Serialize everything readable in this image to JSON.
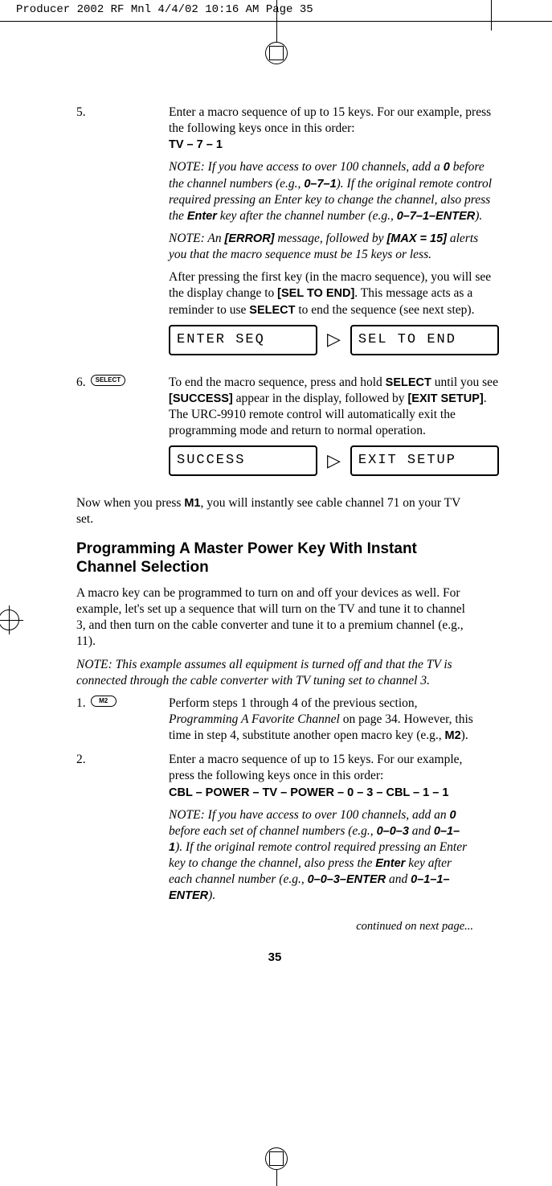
{
  "header": {
    "slug": "Producer 2002 RF Mnl  4/4/02  10:16 AM  Page 35"
  },
  "step5": {
    "num": "5.",
    "line1": "Enter a macro sequence of up to 15 keys. For our example, press the following keys once in this order:",
    "keys": "TV – 7 – 1",
    "note1a": "NOTE: If you have access to over 100 channels, add a ",
    "note1b": "0",
    "note1c": " before the channel numbers (e.g., ",
    "note1d": "0–7–1",
    "note1e": "). If the original remote control required pressing an Enter key to change the channel, also press the ",
    "note1f": "Enter",
    "note1g": " key after the channel number (e.g., ",
    "note1h": "0–7–1–ENTER",
    "note1i": ").",
    "note2a": "NOTE: An ",
    "note2b": "[ERROR]",
    "note2c": " message, followed by ",
    "note2d": "[MAX = 15]",
    "note2e": " alerts you that the macro sequence must be 15 keys or less.",
    "para2a": "After pressing the first key (in the macro sequence), you will see the display change to ",
    "para2b": "[SEL TO END]",
    "para2c": ". This message acts as a reminder to use ",
    "para2d": "SELECT",
    "para2e": " to end the sequence (see next step).",
    "lcd1": "ENTER SEQ",
    "lcd2": "SEL TO END"
  },
  "step6": {
    "num": "6.",
    "badge": "SELECT",
    "line1a": "To end the macro sequence, press and hold ",
    "line1b": "SELECT",
    "line1c": " until you see ",
    "line1d": "[SUCCESS]",
    "line1e": " appear in the display, followed by ",
    "line1f": "[EXIT SETUP]",
    "line1g": ". The URC-9910 remote control will automatically exit the programming mode and return to normal operation.",
    "lcd1": "SUCCESS",
    "lcd2": "EXIT SETUP"
  },
  "after6a": "Now when you press ",
  "after6b": "M1",
  "after6c": ", you will instantly see cable channel 71 on your TV set.",
  "sectionTitle": "Programming A Master Power Key With Instant Channel Selection",
  "sectionIntro": "A macro key can be programmed to turn on and off your devices as well. For example, let's set up a sequence that will turn on the TV and tune it to channel 3, and then turn on the cable converter and tune it to a premium channel (e.g., 11).",
  "sectionNote": "NOTE: This example assumes all equipment is turned off and that the TV is connected through the cable converter with TV tuning set to channel 3.",
  "step1b": {
    "num": "1.",
    "badge": "M2",
    "line1a": "Perform steps 1 through 4 of the previous section, ",
    "line1b": "Programming A Favorite Channel",
    "line1c": " on page 34. However, this time in step 4, substitute another open macro key (e.g., ",
    "line1d": "M2",
    "line1e": ")."
  },
  "step2b": {
    "num": "2.",
    "line1": "Enter a macro sequence of up to 15 keys. For our example, press the following keys once in this order:",
    "keys": "CBL – POWER – TV – POWER – 0 – 3 – CBL – 1 – 1",
    "note1a": "NOTE: If you have access to over 100 channels, add an ",
    "note1b": "0",
    "note1c": " before each set of channel numbers (e.g., ",
    "note1d": "0–0–3",
    "note1e": " and ",
    "note1f": "0–1–1",
    "note1g": "). If the original remote control required pressing an Enter key to change the channel, also press the ",
    "note1h": "Enter",
    "note1i": " key after each channel number (e.g., ",
    "note1j": "0–0–3–ENTER",
    "note1k": " and ",
    "note1l": "0–1–1–ENTER",
    "note1m": ")."
  },
  "continued": "continued on next page...",
  "pageNum": "35"
}
